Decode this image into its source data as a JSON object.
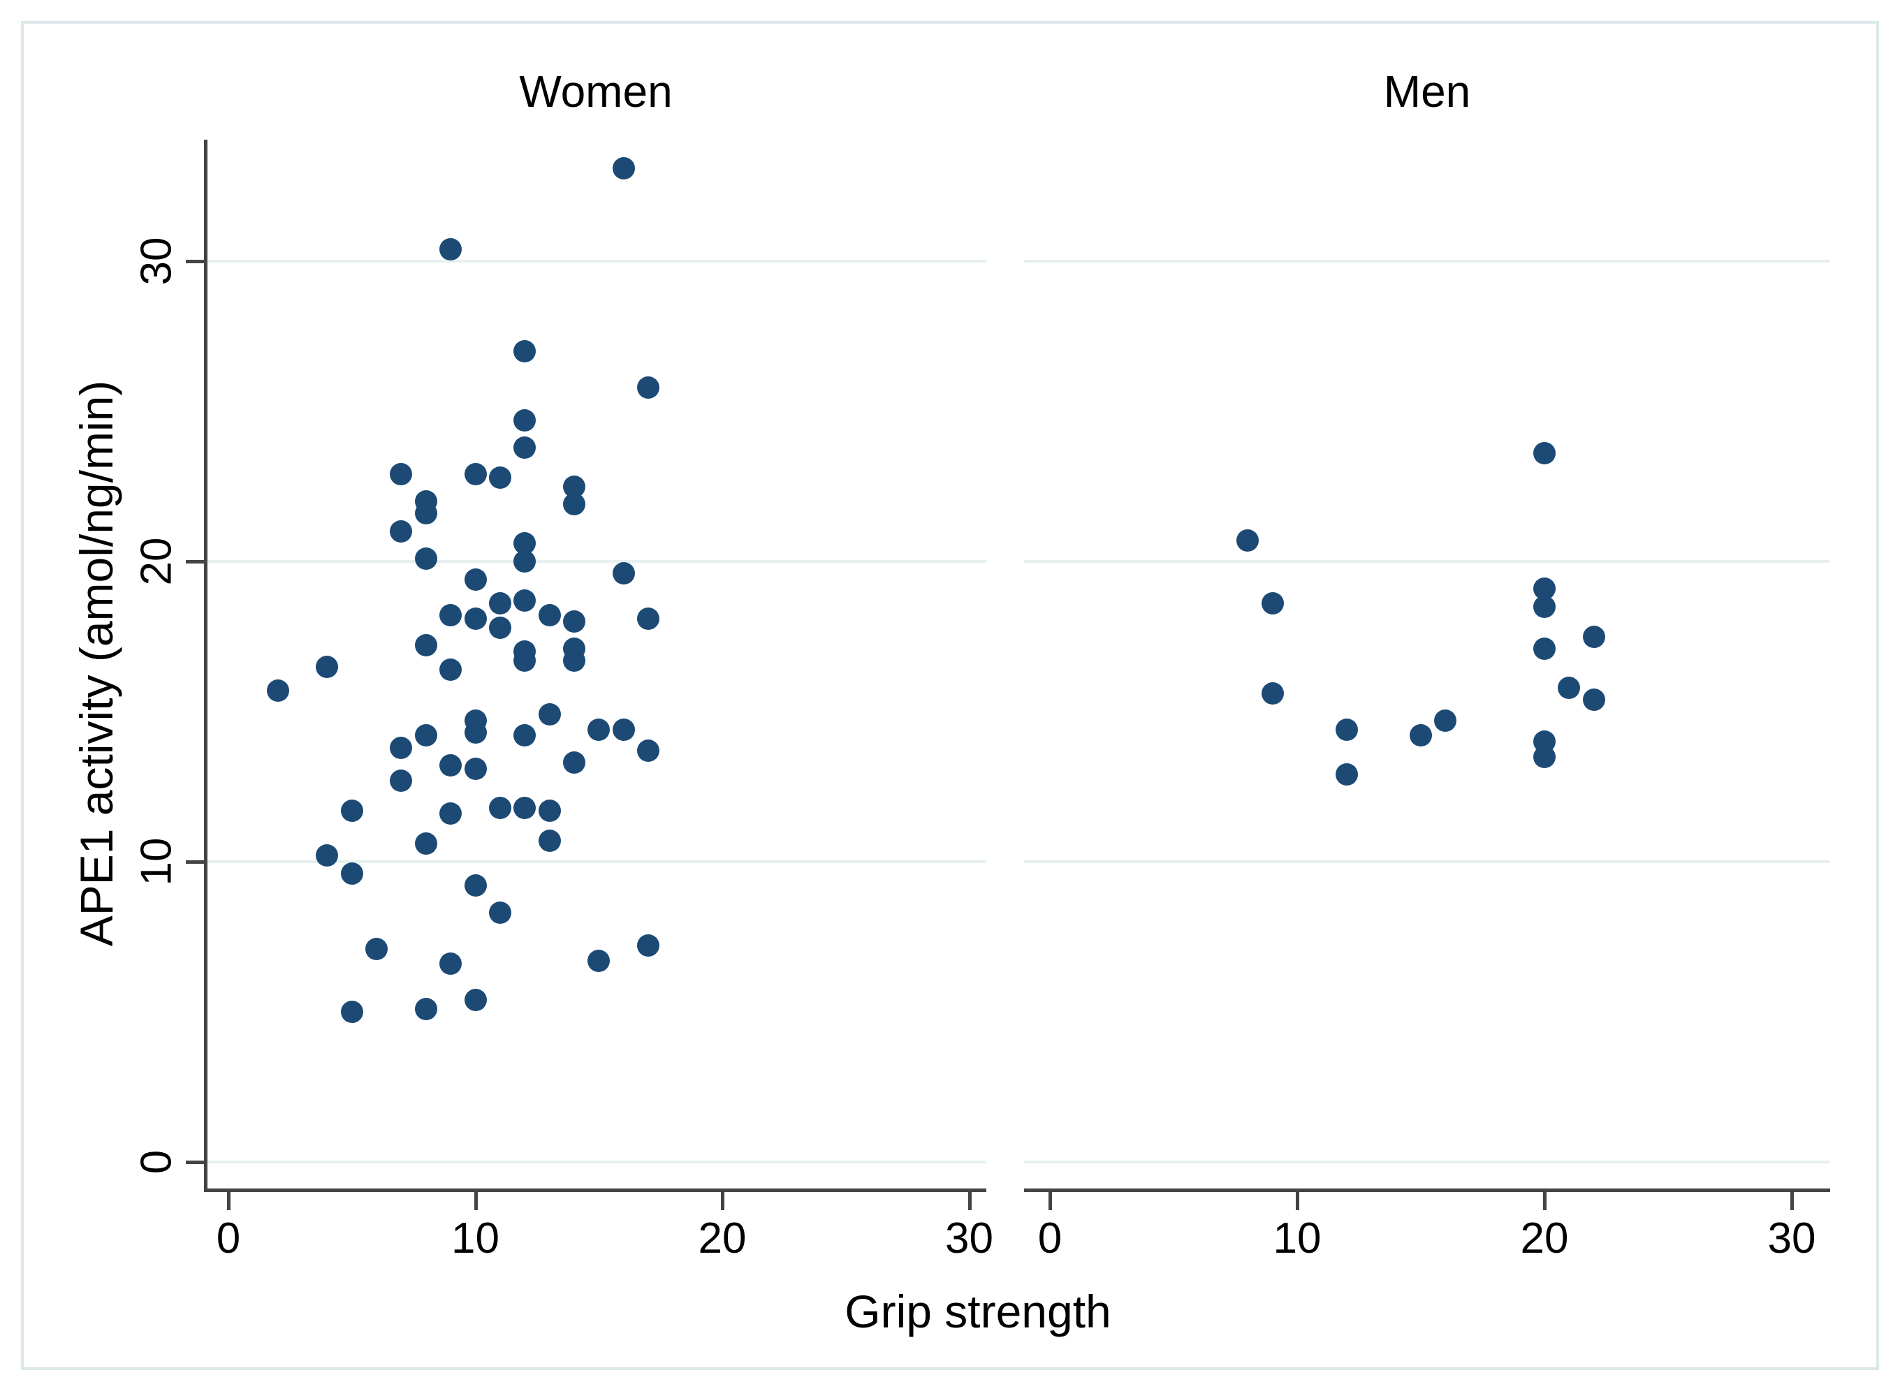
{
  "figure": {
    "y_axis_label": "APE1 activity (amol/ng/min)",
    "x_axis_label": "Grip strength",
    "marker_color": "#1c4a75",
    "gridline_color": "#e7f0f1",
    "axis_color": "#444444",
    "frame_color": "#dce8ea",
    "background_color": "#ffffff"
  },
  "chart_data": [
    {
      "type": "scatter",
      "title": "Women",
      "xlabel": "Grip strength",
      "ylabel": "APE1 activity (amol/ng/min)",
      "xlim": [
        -1,
        31
      ],
      "ylim": [
        0,
        34
      ],
      "x_ticks": [
        0,
        10,
        20,
        30
      ],
      "y_ticks": [
        0,
        10,
        20,
        30
      ],
      "grid": "horizontal",
      "legend": "none",
      "points": [
        [
          16,
          33.1
        ],
        [
          9,
          30.4
        ],
        [
          12,
          27.0
        ],
        [
          17,
          25.8
        ],
        [
          12,
          24.7
        ],
        [
          12,
          23.8
        ],
        [
          7,
          22.9
        ],
        [
          10,
          22.9
        ],
        [
          11,
          22.8
        ],
        [
          14,
          22.5
        ],
        [
          8,
          22.0
        ],
        [
          14,
          21.9
        ],
        [
          8,
          21.6
        ],
        [
          7,
          21.0
        ],
        [
          12,
          20.6
        ],
        [
          8,
          20.1
        ],
        [
          12,
          20.0
        ],
        [
          16,
          19.6
        ],
        [
          10,
          19.4
        ],
        [
          12,
          18.7
        ],
        [
          11,
          18.6
        ],
        [
          9,
          18.2
        ],
        [
          13,
          18.2
        ],
        [
          10,
          18.1
        ],
        [
          17,
          18.1
        ],
        [
          14,
          18.0
        ],
        [
          11,
          17.8
        ],
        [
          8,
          17.2
        ],
        [
          14,
          17.1
        ],
        [
          12,
          17.0
        ],
        [
          14,
          16.7
        ],
        [
          12,
          16.7
        ],
        [
          4,
          16.5
        ],
        [
          9,
          16.4
        ],
        [
          2,
          15.7
        ],
        [
          13,
          14.9
        ],
        [
          10,
          14.7
        ],
        [
          15,
          14.4
        ],
        [
          16,
          14.4
        ],
        [
          10,
          14.3
        ],
        [
          8,
          14.2
        ],
        [
          12,
          14.2
        ],
        [
          7,
          13.8
        ],
        [
          17,
          13.7
        ],
        [
          14,
          13.3
        ],
        [
          9,
          13.2
        ],
        [
          10,
          13.1
        ],
        [
          7,
          12.7
        ],
        [
          11,
          11.8
        ],
        [
          12,
          11.8
        ],
        [
          13,
          11.7
        ],
        [
          5,
          11.7
        ],
        [
          9,
          11.6
        ],
        [
          13,
          10.7
        ],
        [
          8,
          10.6
        ],
        [
          4,
          10.2
        ],
        [
          5,
          9.6
        ],
        [
          10,
          9.2
        ],
        [
          11,
          8.3
        ],
        [
          17,
          7.2
        ],
        [
          6,
          7.1
        ],
        [
          15,
          6.7
        ],
        [
          9,
          6.6
        ],
        [
          10,
          5.4
        ],
        [
          8,
          5.1
        ],
        [
          5,
          5.0
        ]
      ]
    },
    {
      "type": "scatter",
      "title": "Men",
      "xlabel": "Grip strength",
      "ylabel": "APE1 activity (amol/ng/min)",
      "xlim": [
        -1,
        31
      ],
      "ylim": [
        0,
        34
      ],
      "x_ticks": [
        0,
        10,
        20,
        30
      ],
      "y_ticks": [
        0,
        10,
        20,
        30
      ],
      "grid": "horizontal",
      "legend": "none",
      "points": [
        [
          8,
          20.7
        ],
        [
          9,
          18.6
        ],
        [
          9,
          15.6
        ],
        [
          12,
          14.4
        ],
        [
          12,
          12.9
        ],
        [
          15,
          14.2
        ],
        [
          16,
          14.7
        ],
        [
          20,
          23.6
        ],
        [
          20,
          19.1
        ],
        [
          20,
          18.5
        ],
        [
          20,
          17.1
        ],
        [
          20,
          14.0
        ],
        [
          20,
          13.5
        ],
        [
          21,
          15.8
        ],
        [
          22,
          17.5
        ],
        [
          22,
          15.4
        ]
      ]
    }
  ]
}
